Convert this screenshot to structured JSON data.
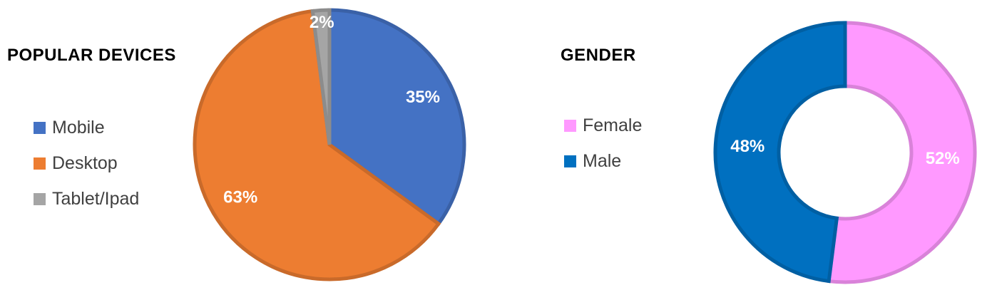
{
  "chart_data": [
    {
      "type": "pie",
      "title": "POPULAR DEVICES",
      "categories": [
        "Mobile",
        "Desktop",
        "Tablet/Ipad"
      ],
      "values": [
        35,
        63,
        2
      ],
      "labels": [
        "35%",
        "63%",
        "2%"
      ],
      "colors": [
        "#4472C4",
        "#ED7D31",
        "#A5A5A5"
      ],
      "legend": "left"
    },
    {
      "type": "pie",
      "style": "donut",
      "title": "GENDER",
      "categories": [
        "Female",
        "Male"
      ],
      "values": [
        52,
        48
      ],
      "labels": [
        "52%",
        "48%"
      ],
      "colors": [
        "#FF99FF",
        "#0070C0"
      ],
      "legend": "left"
    }
  ]
}
